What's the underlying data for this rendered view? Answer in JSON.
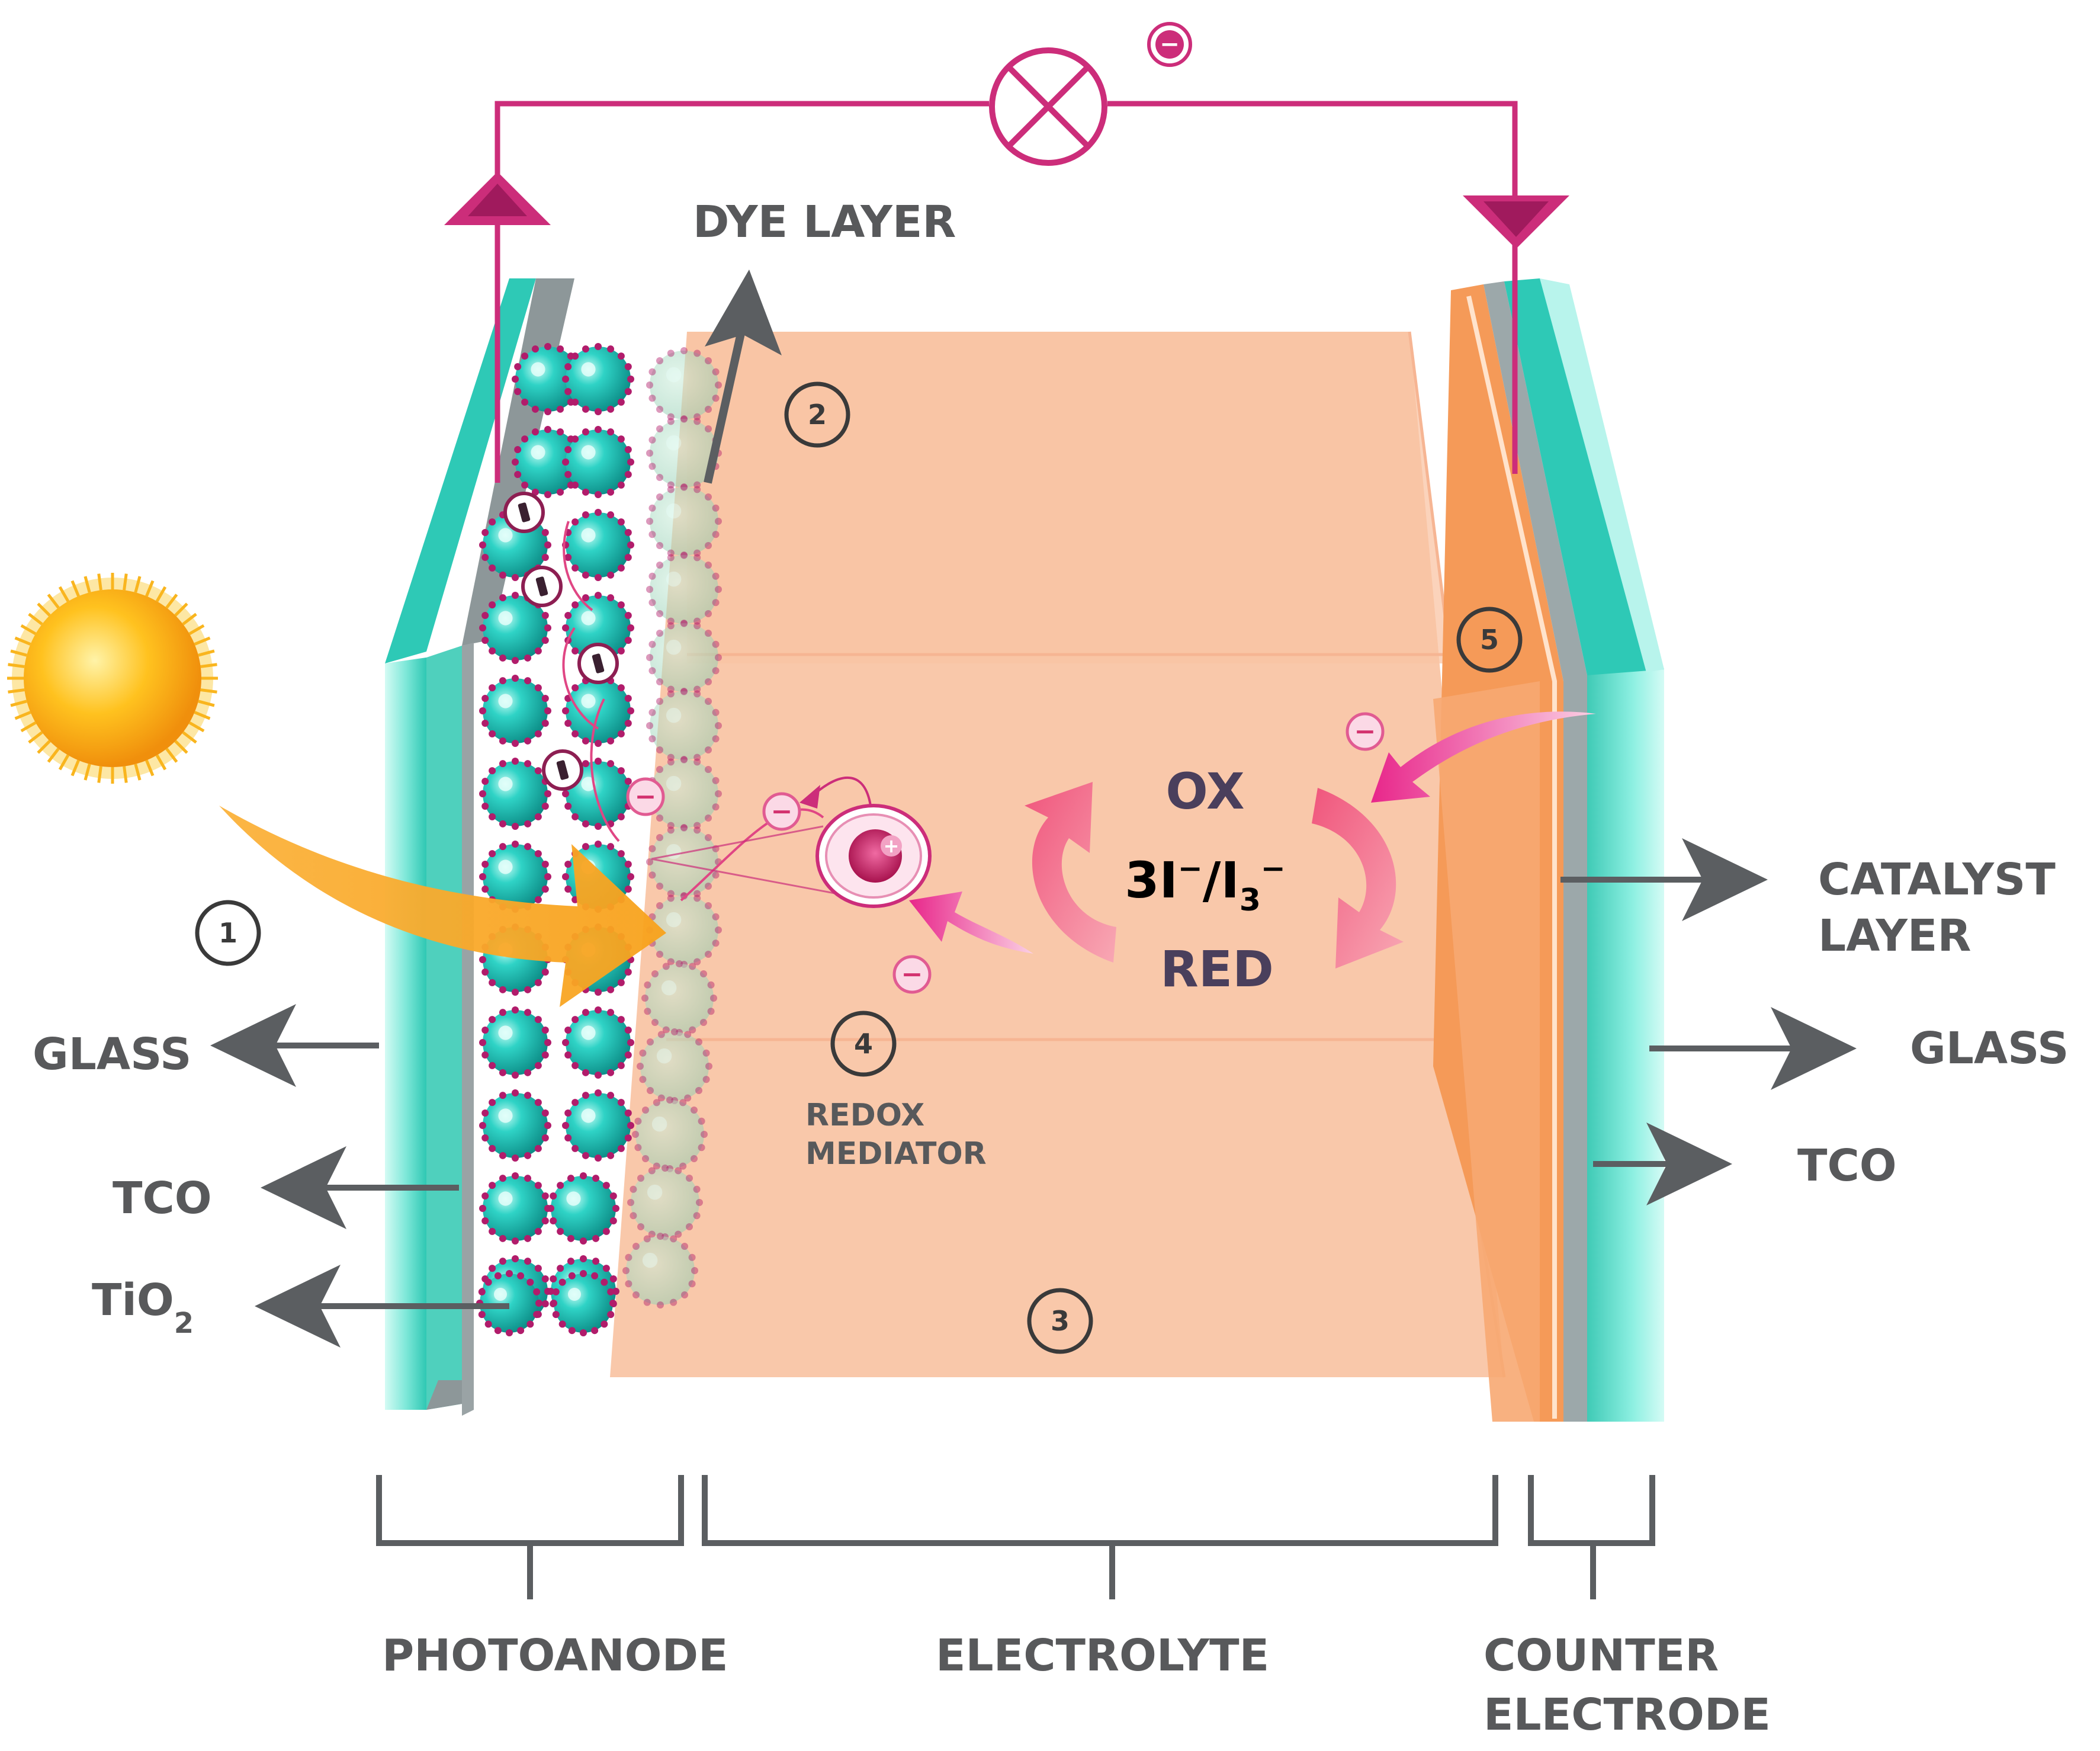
{
  "labels": {
    "dye_layer": "DYE LAYER",
    "glass_left": "GLASS",
    "tco_left": "TCO",
    "tio2_main": "TiO",
    "tio2_sub": "2",
    "catalyst_1": "CATALYST",
    "catalyst_2": "LAYER",
    "glass_right": "GLASS",
    "tco_right": "TCO",
    "redox_1": "REDOX",
    "redox_2": "MEDIATOR",
    "photoanode": "PHOTOANODE",
    "electrolyte": "ELECTROLYTE",
    "counter_1": "COUNTER",
    "counter_2": "ELECTRODE"
  },
  "redox_cycle": {
    "ox": "OX",
    "couple_a": "3I",
    "couple_sup_a": "−",
    "couple_b": "/I",
    "couple_sub": "3",
    "couple_sup_b": "−",
    "red": "RED"
  },
  "steps": {
    "s1": "1",
    "s2": "2",
    "s3": "3",
    "s4": "4",
    "s5": "5"
  },
  "charges": {
    "electron": "−",
    "hole": "+"
  },
  "colors": {
    "circuit": "#cc2d7a",
    "glass": "#3fd6c0",
    "electrolyte": "#f8c3a3",
    "catalyst": "#f59a58",
    "tio2": "#17b6ad",
    "dye": "#b11c6b",
    "label": "#58595b"
  }
}
